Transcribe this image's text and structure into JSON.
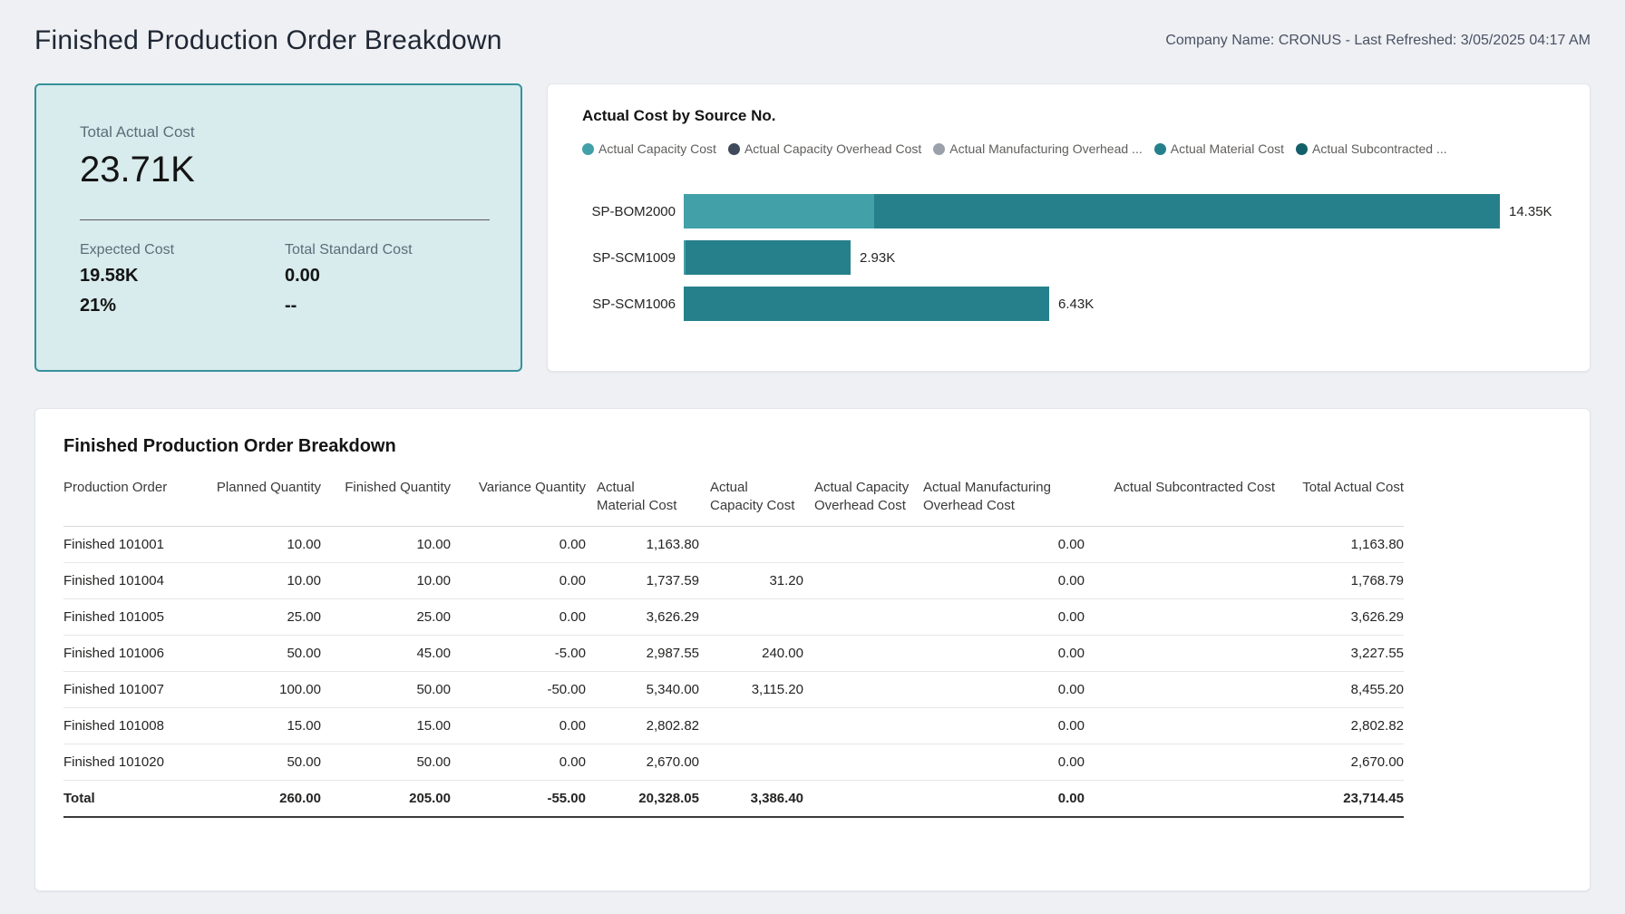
{
  "header": {
    "title": "Finished Production Order Breakdown",
    "company_info": "Company Name: CRONUS - Last Refreshed: 3/05/2025 04:17 AM"
  },
  "kpi": {
    "primary_label": "Total Actual Cost",
    "primary_value": "23.71K",
    "secondary": [
      {
        "label": "Expected Cost",
        "value": "19.58K",
        "extra": "21%"
      },
      {
        "label": "Total Standard Cost",
        "value": "0.00",
        "extra": "--"
      }
    ],
    "accent_color": "#35929b",
    "background_color": "#d8ebed"
  },
  "chart_data": {
    "type": "bar",
    "orientation": "horizontal",
    "stacked": true,
    "title": "Actual Cost by Source No.",
    "legend": [
      {
        "label": "Actual Capacity Cost",
        "color": "#42a0a8"
      },
      {
        "label": "Actual Capacity Overhead Cost",
        "color": "#3f4a5a"
      },
      {
        "label": "Actual Manufacturing Overhead ...",
        "color": "#9ba1ab"
      },
      {
        "label": "Actual Material Cost",
        "color": "#26808b"
      },
      {
        "label": "Actual Subcontracted ...",
        "color": "#14606a"
      }
    ],
    "bars": [
      {
        "category": "SP-BOM2000",
        "label": "14.35K",
        "total": 14353,
        "segments": [
          {
            "series": "Actual Capacity Cost",
            "value": 3355,
            "color": "#42a0a8"
          },
          {
            "series": "Actual Material Cost",
            "value": 10998,
            "color": "#26808b"
          }
        ]
      },
      {
        "category": "SP-SCM1009",
        "label": "2.93K",
        "total": 2933,
        "segments": [
          {
            "series": "Actual Capacity Cost",
            "value": 31,
            "color": "#42a0a8"
          },
          {
            "series": "Actual Material Cost",
            "value": 2902,
            "color": "#26808b"
          }
        ]
      },
      {
        "category": "SP-SCM1006",
        "label": "6.43K",
        "total": 6429,
        "segments": [
          {
            "series": "Actual Material Cost",
            "value": 6429,
            "color": "#26808b"
          }
        ]
      }
    ]
  },
  "table": {
    "title": "Finished Production Order Breakdown",
    "columns": [
      {
        "label": "Production Order",
        "halign": "left"
      },
      {
        "label": "Planned Quantity",
        "halign": "right"
      },
      {
        "label": "Finished Quantity",
        "halign": "right"
      },
      {
        "label": "Variance Quantity",
        "halign": "right"
      },
      {
        "label": "Actual\nMaterial Cost",
        "halign": "left"
      },
      {
        "label": "Actual\nCapacity Cost",
        "halign": "left"
      },
      {
        "label": "Actual Capacity\nOverhead Cost",
        "halign": "left"
      },
      {
        "label": "Actual Manufacturing\nOverhead Cost",
        "halign": "left"
      },
      {
        "label": "Actual Subcontracted Cost",
        "halign": "right"
      },
      {
        "label": "Total Actual Cost",
        "halign": "right"
      }
    ],
    "rows": [
      [
        "Finished 101001",
        "10.00",
        "10.00",
        "0.00",
        "1,163.80",
        "",
        "",
        "0.00",
        "",
        "1,163.80"
      ],
      [
        "Finished 101004",
        "10.00",
        "10.00",
        "0.00",
        "1,737.59",
        "31.20",
        "",
        "0.00",
        "",
        "1,768.79"
      ],
      [
        "Finished 101005",
        "25.00",
        "25.00",
        "0.00",
        "3,626.29",
        "",
        "",
        "0.00",
        "",
        "3,626.29"
      ],
      [
        "Finished 101006",
        "50.00",
        "45.00",
        "-5.00",
        "2,987.55",
        "240.00",
        "",
        "0.00",
        "",
        "3,227.55"
      ],
      [
        "Finished 101007",
        "100.00",
        "50.00",
        "-50.00",
        "5,340.00",
        "3,115.20",
        "",
        "0.00",
        "",
        "8,455.20"
      ],
      [
        "Finished 101008",
        "15.00",
        "15.00",
        "0.00",
        "2,802.82",
        "",
        "",
        "0.00",
        "",
        "2,802.82"
      ],
      [
        "Finished 101020",
        "50.00",
        "50.00",
        "0.00",
        "2,670.00",
        "",
        "",
        "0.00",
        "",
        "2,670.00"
      ]
    ],
    "total_row": [
      "Total",
      "260.00",
      "205.00",
      "-55.00",
      "20,328.05",
      "3,386.40",
      "",
      "0.00",
      "",
      "23,714.45"
    ]
  }
}
